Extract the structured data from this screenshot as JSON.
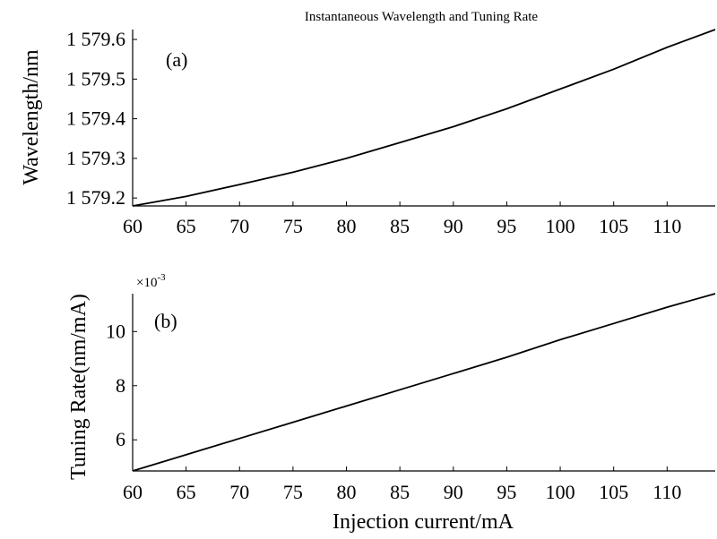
{
  "chart_data": {
    "title": "Instantaneous Wavelength and Tuning Rate",
    "xlabel": "Injection current/mA",
    "panels": [
      {
        "panel_label": "(a)",
        "type": "line",
        "ylabel": "Wavelength/nm",
        "xlim": [
          60,
          114.5
        ],
        "ylim": [
          1579.18,
          1579.625
        ],
        "x_ticks": [
          60,
          65,
          70,
          75,
          80,
          85,
          90,
          95,
          100,
          105,
          110
        ],
        "x_tick_labels": [
          "60",
          "65",
          "70",
          "75",
          "80",
          "85",
          "90",
          "95",
          "100",
          "105",
          "110"
        ],
        "y_ticks": [
          1579.2,
          1579.3,
          1579.4,
          1579.5,
          1579.6
        ],
        "y_tick_labels": [
          "1 579.2",
          "1 579.3",
          "1 579.4",
          "1 579.5",
          "1 579.6"
        ],
        "series": [
          {
            "x": [
              60,
              65,
              70,
              75,
              80,
              85,
              90,
              95,
              100,
              105,
              110,
              114.5
            ],
            "y": [
              1579.18,
              1579.204,
              1579.234,
              1579.265,
              1579.3,
              1579.34,
              1579.38,
              1579.425,
              1579.475,
              1579.525,
              1579.58,
              1579.625
            ]
          }
        ]
      },
      {
        "panel_label": "(b)",
        "type": "line",
        "ylabel": "Tuning Rate(nm/mA)",
        "y_exponent_label": "×10",
        "y_exponent_power": "-3",
        "xlim": [
          60,
          114.5
        ],
        "ylim": [
          4.85,
          11.4
        ],
        "x_ticks": [
          60,
          65,
          70,
          75,
          80,
          85,
          90,
          95,
          100,
          105,
          110
        ],
        "x_tick_labels": [
          "60",
          "65",
          "70",
          "75",
          "80",
          "85",
          "90",
          "95",
          "100",
          "105",
          "110"
        ],
        "y_ticks": [
          6,
          8,
          10
        ],
        "y_tick_labels": [
          "6",
          "8",
          "10"
        ],
        "series": [
          {
            "x": [
              60,
              65,
              70,
              75,
              80,
              85,
              90,
              95,
              100,
              105,
              110,
              114.5
            ],
            "y": [
              4.85,
              5.45,
              6.05,
              6.65,
              7.25,
              7.85,
              8.45,
              9.05,
              9.7,
              10.3,
              10.9,
              11.4
            ]
          }
        ]
      }
    ]
  }
}
